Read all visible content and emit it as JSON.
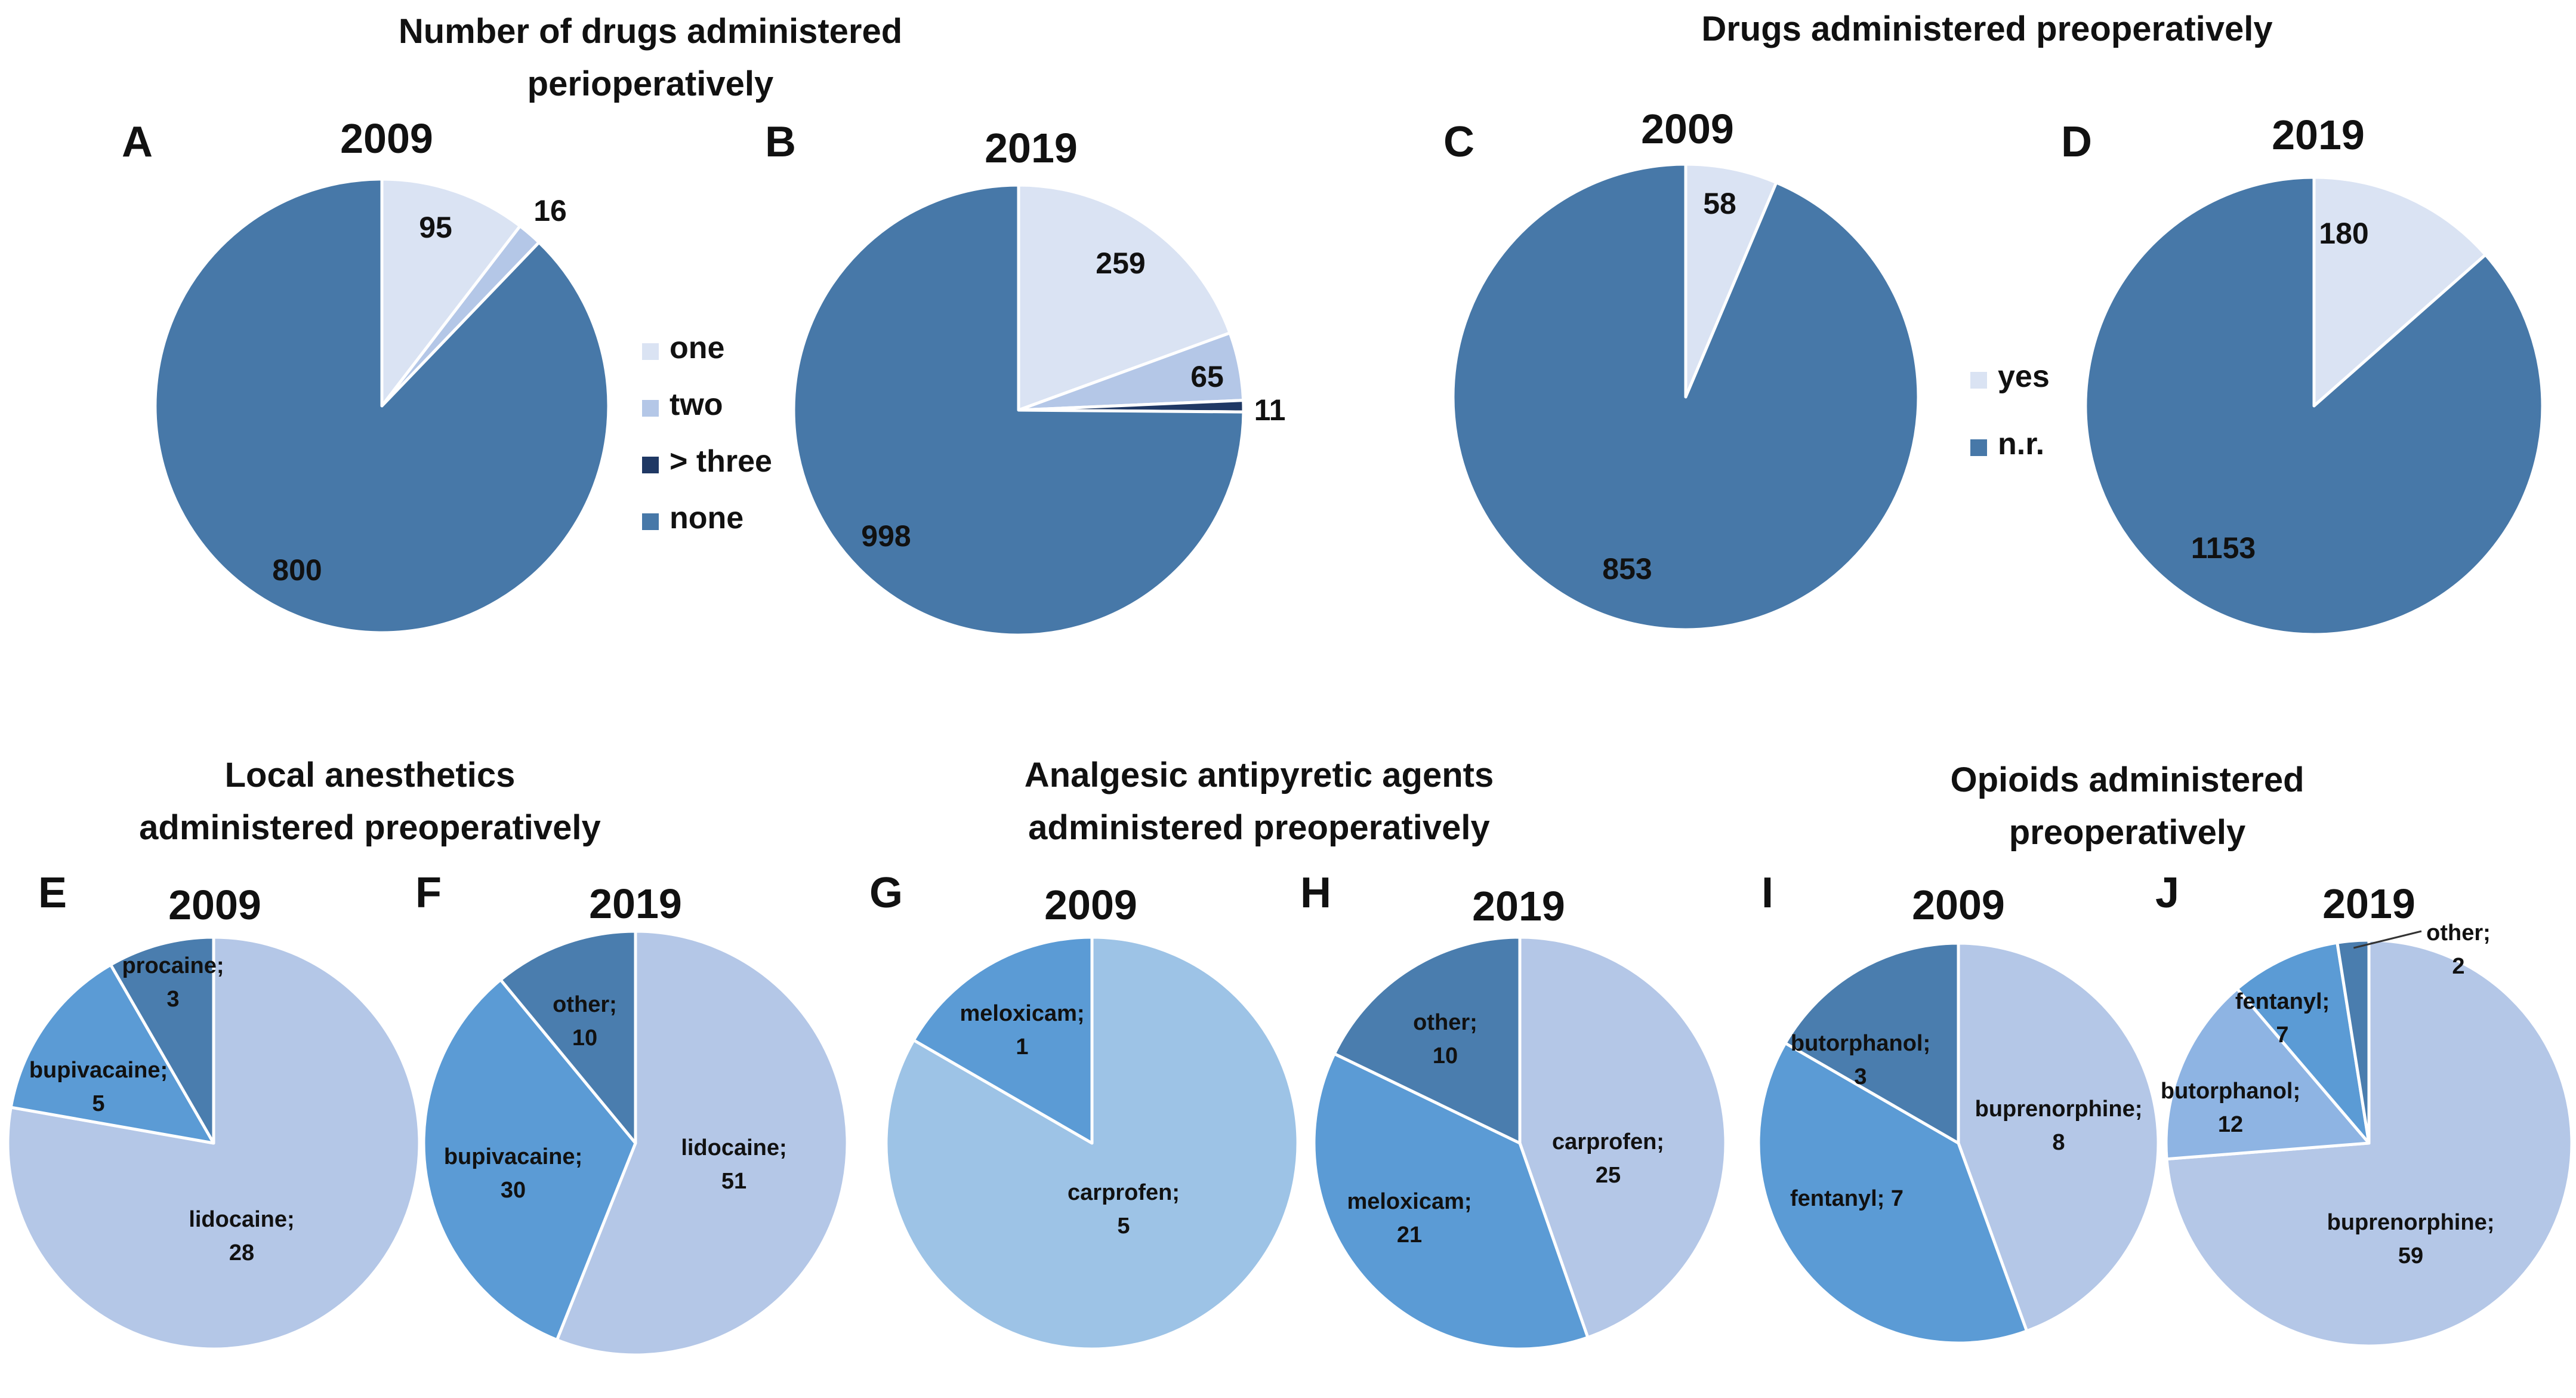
{
  "section_titles": {
    "perioperative": [
      "Number of drugs administered",
      "perioperatively"
    ],
    "preoperative": [
      "Drugs administered preoperatively"
    ],
    "local": [
      "Local anesthetics",
      "administered preoperatively"
    ],
    "analgesic": [
      "Analgesic antipyretic agents",
      "administered preoperatively"
    ],
    "opioids": [
      "Opioids administered",
      "preoperatively"
    ]
  },
  "legends": {
    "number": [
      {
        "label": "one",
        "color": "#DAE3F3"
      },
      {
        "label": "two",
        "color": "#B4C7E7"
      },
      {
        "label": "> three",
        "color": "#1F3864"
      },
      {
        "label": "none",
        "color": "#4778A8"
      }
    ],
    "yesno": [
      {
        "label": "yes",
        "color": "#DAE3F3"
      },
      {
        "label": "n.r.",
        "color": "#4778A8"
      }
    ]
  },
  "chart_data": [
    {
      "panel": "A",
      "type": "pie",
      "year": "2009",
      "categories": [
        "one",
        "two",
        "> three",
        "none"
      ],
      "values": [
        95,
        16,
        0,
        800
      ],
      "colors": [
        "#DAE3F3",
        "#B4C7E7",
        "#1F3864",
        "#4778A8"
      ],
      "data_labels": [
        "95",
        "16",
        "",
        "800"
      ]
    },
    {
      "panel": "B",
      "type": "pie",
      "year": "2019",
      "categories": [
        "one",
        "two",
        "> three",
        "none"
      ],
      "values": [
        259,
        65,
        11,
        998
      ],
      "colors": [
        "#DAE3F3",
        "#B4C7E7",
        "#1F3864",
        "#4778A8"
      ],
      "data_labels": [
        "259",
        "65",
        "11",
        "998"
      ]
    },
    {
      "panel": "C",
      "type": "pie",
      "year": "2009",
      "categories": [
        "yes",
        "n.r."
      ],
      "values": [
        58,
        853
      ],
      "colors": [
        "#DAE3F3",
        "#4778A8"
      ],
      "data_labels": [
        "58",
        "853"
      ]
    },
    {
      "panel": "D",
      "type": "pie",
      "year": "2019",
      "categories": [
        "yes",
        "n.r."
      ],
      "values": [
        180,
        1153
      ],
      "colors": [
        "#DAE3F3",
        "#4778A8"
      ],
      "data_labels": [
        "180",
        "1153"
      ]
    },
    {
      "panel": "E",
      "type": "pie",
      "year": "2009",
      "categories": [
        "lidocaine",
        "bupivacaine",
        "procaine"
      ],
      "values": [
        28,
        5,
        3
      ],
      "colors": [
        "#B4C7E7",
        "#5B9BD5",
        "#4A7DAE"
      ],
      "data_labels": [
        "lidocaine;\n28",
        "bupivacaine;\n5",
        "procaine;\n3"
      ]
    },
    {
      "panel": "F",
      "type": "pie",
      "year": "2019",
      "categories": [
        "lidocaine",
        "bupivacaine",
        "other"
      ],
      "values": [
        51,
        30,
        10
      ],
      "colors": [
        "#B4C7E7",
        "#5B9BD5",
        "#4A7DAE"
      ],
      "data_labels": [
        "lidocaine;\n51",
        "bupivacaine;\n30",
        "other;\n10"
      ]
    },
    {
      "panel": "G",
      "type": "pie",
      "year": "2009",
      "categories": [
        "carprofen",
        "meloxicam"
      ],
      "values": [
        5,
        1
      ],
      "colors": [
        "#9DC3E6",
        "#5B9BD5"
      ],
      "data_labels": [
        "carprofen;\n5",
        "meloxicam;\n1"
      ]
    },
    {
      "panel": "H",
      "type": "pie",
      "year": "2019",
      "categories": [
        "carprofen",
        "meloxicam",
        "other"
      ],
      "values": [
        25,
        21,
        10
      ],
      "colors": [
        "#B4C7E7",
        "#5B9BD5",
        "#4A7DAE"
      ],
      "data_labels": [
        "carprofen;\n25",
        "meloxicam;\n21",
        "other;\n10"
      ]
    },
    {
      "panel": "I",
      "type": "pie",
      "year": "2009",
      "categories": [
        "buprenorphine",
        "fentanyl",
        "butorphanol"
      ],
      "values": [
        8,
        7,
        3
      ],
      "colors": [
        "#B4C7E7",
        "#5B9BD5",
        "#4A7DAE"
      ],
      "data_labels": [
        "buprenorphine;\n8",
        "fentanyl; 7",
        "butorphanol;\n3"
      ]
    },
    {
      "panel": "J",
      "type": "pie",
      "year": "2019",
      "categories": [
        "buprenorphine",
        "butorphanol",
        "fentanyl",
        "other"
      ],
      "values": [
        59,
        12,
        7,
        2
      ],
      "colors": [
        "#B4C7E7",
        "#8EB4E3",
        "#5B9BD5",
        "#4A7DAE"
      ],
      "data_labels": [
        "buprenorphine;\n59",
        "butorphanol;\n12",
        "fentanyl;\n7",
        "other;\n2"
      ]
    }
  ]
}
